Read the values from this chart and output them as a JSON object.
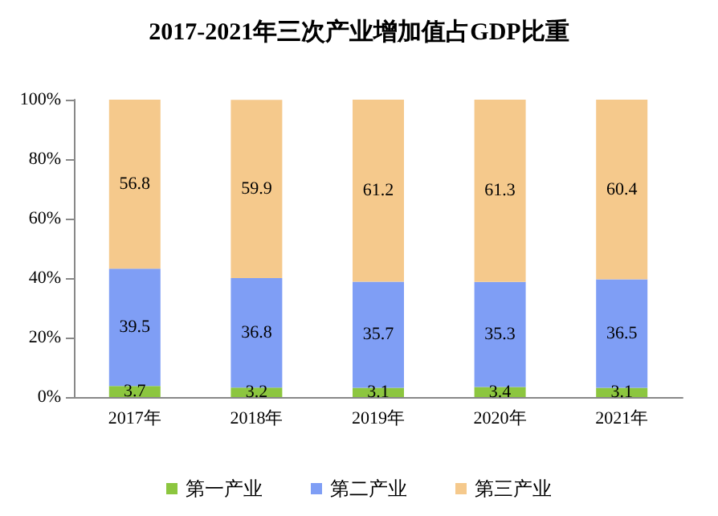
{
  "chart_data": {
    "type": "bar",
    "title": "2017-2021年三次产业增加值占GDP比重",
    "categories": [
      "2017年",
      "2018年",
      "2019年",
      "2020年",
      "2021年"
    ],
    "stacked": true,
    "data_labels": true,
    "legend": "bottom",
    "grid": false,
    "series": [
      {
        "name": "第一产业",
        "color": "#8cc63f",
        "values": [
          3.7,
          3.2,
          3.1,
          3.4,
          3.1
        ]
      },
      {
        "name": "第二产业",
        "color": "#7f9ef5",
        "values": [
          39.5,
          36.8,
          35.7,
          35.3,
          36.5
        ]
      },
      {
        "name": "第三产业",
        "color": "#f5c98c",
        "values": [
          56.8,
          59.9,
          61.2,
          61.3,
          60.4
        ]
      }
    ],
    "ylim": [
      0,
      100
    ],
    "yticks": [
      {
        "value": 0,
        "label": "0%"
      },
      {
        "value": 20,
        "label": "20%"
      },
      {
        "value": 40,
        "label": "40%"
      },
      {
        "value": 60,
        "label": "60%"
      },
      {
        "value": 80,
        "label": "80%"
      },
      {
        "value": 100,
        "label": "100%"
      }
    ]
  }
}
